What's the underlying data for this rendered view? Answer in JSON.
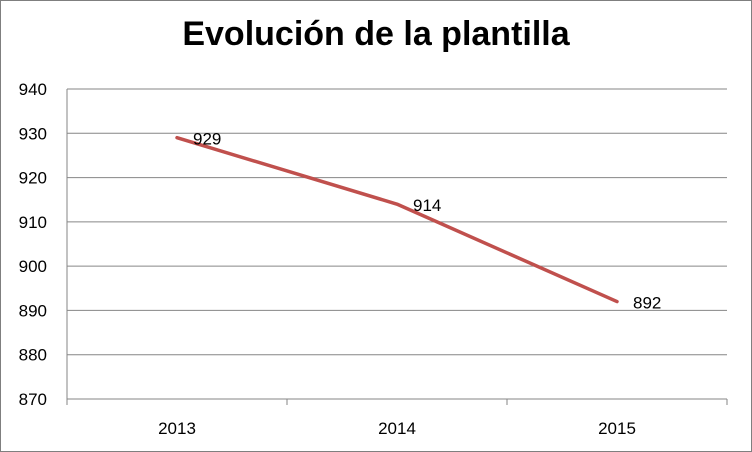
{
  "chart_data": {
    "type": "line",
    "title": "Evolución de la plantilla",
    "xlabel": "",
    "ylabel": "",
    "categories": [
      "2013",
      "2014",
      "2015"
    ],
    "series": [
      {
        "values": [
          929,
          914,
          892
        ],
        "color": "#c0504d",
        "data_labels": [
          "929",
          "914",
          "892"
        ]
      }
    ],
    "ylim": [
      870,
      940
    ],
    "yticks": [
      870,
      880,
      890,
      900,
      910,
      920,
      930,
      940
    ],
    "ytick_labels": [
      "870",
      "880",
      "890",
      "900",
      "910",
      "920",
      "930",
      "940"
    ],
    "grid": true,
    "legend": "none"
  }
}
